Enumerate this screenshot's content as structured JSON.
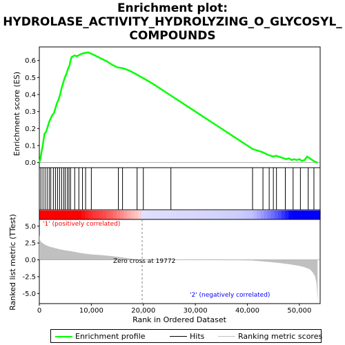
{
  "title_lines": [
    "Enrichment plot:",
    "HYDROLASE_ACTIVITY_HYDROLYZING_O_GLYCOSYL_",
    "COMPOUNDS"
  ],
  "legend": {
    "items": [
      {
        "label": "Enrichment profile",
        "color": "#00ff00"
      },
      {
        "label": "Hits",
        "color": "#000000"
      },
      {
        "label": "Ranking metric scores",
        "color": "#c0c0c0"
      }
    ]
  },
  "annotations": {
    "pos_label": "'1' (positively correlated)",
    "neg_label": "'2' (negatively correlated)",
    "zero_cross": "Zero cross at 19772",
    "pos_color": "#ff0000",
    "neg_color": "#0000ff"
  },
  "chart_data": [
    {
      "type": "line",
      "name": "enrichment",
      "ylabel": "Enrichment score (ES)",
      "xlim": [
        0,
        54000
      ],
      "ylim": [
        -0.03,
        0.68
      ],
      "yticks": [
        0.0,
        0.1,
        0.2,
        0.3,
        0.4,
        0.5,
        0.6
      ],
      "ytick_labels": [
        "0.0",
        "0.1",
        "0.2",
        "0.3",
        "0.4",
        "0.5",
        "0.6"
      ],
      "color": "#00ff00",
      "x": [
        0,
        200,
        400,
        600,
        800,
        1000,
        1300,
        1600,
        1900,
        2200,
        2500,
        2800,
        3100,
        3400,
        3700,
        4000,
        4300,
        4600,
        4900,
        5200,
        5500,
        5800,
        6000,
        6200,
        6800,
        7200,
        7800,
        8200,
        8800,
        9400,
        10000,
        11000,
        12000,
        13000,
        14000,
        15000,
        16000,
        17000,
        18000,
        19772,
        22000,
        25000,
        28000,
        31000,
        34000,
        37000,
        40000,
        41000,
        42000,
        43000,
        44000,
        44500,
        45000,
        45500,
        46000,
        47000,
        47500,
        48000,
        48500,
        49000,
        49500,
        50000,
        50500,
        51000,
        51500,
        52000,
        52500,
        53000,
        53500
      ],
      "y": [
        0.0,
        0.02,
        0.06,
        0.09,
        0.13,
        0.17,
        0.18,
        0.21,
        0.24,
        0.26,
        0.28,
        0.29,
        0.32,
        0.35,
        0.37,
        0.4,
        0.44,
        0.47,
        0.5,
        0.52,
        0.55,
        0.57,
        0.6,
        0.62,
        0.63,
        0.625,
        0.635,
        0.64,
        0.645,
        0.648,
        0.64,
        0.625,
        0.61,
        0.595,
        0.575,
        0.56,
        0.555,
        0.545,
        0.53,
        0.5,
        0.46,
        0.4,
        0.34,
        0.28,
        0.22,
        0.16,
        0.1,
        0.08,
        0.07,
        0.06,
        0.045,
        0.04,
        0.035,
        0.04,
        0.035,
        0.025,
        0.02,
        0.025,
        0.015,
        0.02,
        0.015,
        0.02,
        0.01,
        0.015,
        0.035,
        0.025,
        0.015,
        0.005,
        0.0
      ]
    },
    {
      "type": "hits",
      "name": "hits",
      "x": [
        300,
        700,
        1100,
        1500,
        1900,
        2200,
        2700,
        3100,
        3500,
        3900,
        4300,
        4700,
        5000,
        5400,
        5700,
        6000,
        6800,
        7600,
        8300,
        8900,
        10000,
        15200,
        16000,
        18800,
        20000,
        25300,
        41000,
        43000,
        44200,
        45000,
        45600,
        47300,
        48800,
        50200,
        51700,
        52800
      ]
    },
    {
      "type": "area",
      "name": "ranking_metric",
      "xlabel": "Rank in Ordered Dataset",
      "ylabel": "Ranked list metric (TTest)",
      "xlim": [
        0,
        54000
      ],
      "ylim": [
        -6.5,
        6.0
      ],
      "xticks": [
        0,
        10000,
        20000,
        30000,
        40000,
        50000
      ],
      "xtick_labels": [
        "0",
        "10,000",
        "20,000",
        "30,000",
        "40,000",
        "50,000"
      ],
      "yticks": [
        -5.0,
        -2.5,
        0.0,
        2.5,
        5.0
      ],
      "ytick_labels": [
        "-5.0",
        "-2.5",
        "0.0",
        "2.5",
        "5.0"
      ],
      "zero_cross": 19772,
      "color": "#c0c0c0",
      "x": [
        0,
        100,
        300,
        600,
        1000,
        1500,
        2000,
        3000,
        4000,
        5000,
        6000,
        7000,
        8000,
        9000,
        10000,
        12000,
        14000,
        16000,
        18000,
        19772,
        22000,
        26000,
        30000,
        34000,
        38000,
        41000,
        44000,
        46000,
        48000,
        50000,
        51000,
        52000,
        52500,
        53000,
        53300,
        53500
      ],
      "y": [
        3.8,
        3.0,
        2.7,
        2.5,
        2.3,
        2.1,
        1.95,
        1.75,
        1.55,
        1.4,
        1.3,
        1.15,
        1.0,
        0.9,
        0.8,
        0.7,
        0.55,
        0.35,
        0.15,
        0.0,
        -0.01,
        -0.02,
        -0.03,
        -0.04,
        -0.06,
        -0.1,
        -0.3,
        -0.45,
        -0.65,
        -0.9,
        -1.1,
        -1.4,
        -1.8,
        -2.4,
        -3.5,
        -6.2
      ]
    }
  ]
}
